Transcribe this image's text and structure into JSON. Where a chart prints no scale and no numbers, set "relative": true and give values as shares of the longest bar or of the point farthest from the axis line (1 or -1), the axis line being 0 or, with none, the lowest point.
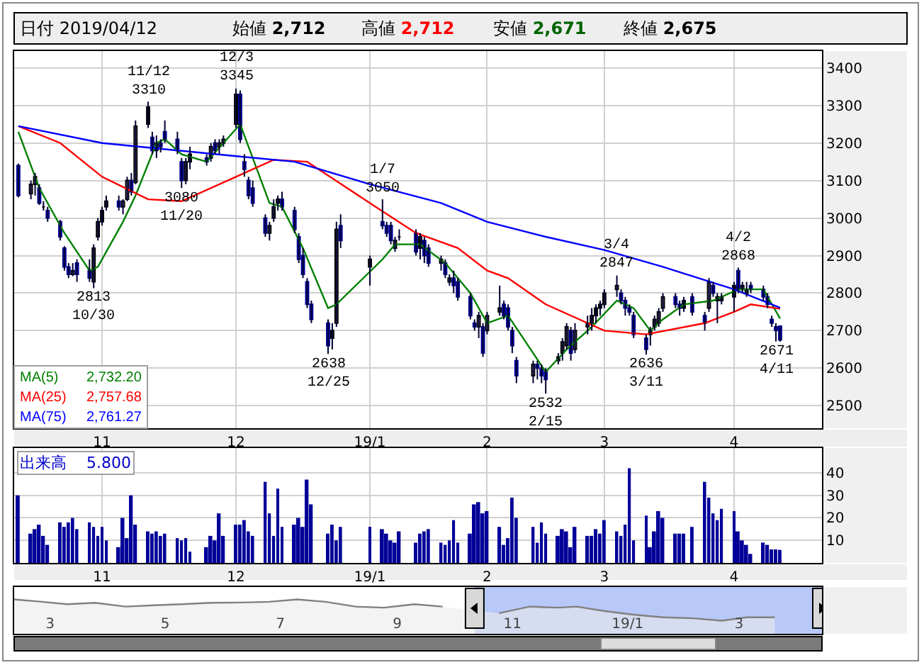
{
  "chart_data": [
    {
      "type": "candlestick",
      "grid": true,
      "marker": "none",
      "annotations": [
        "日付 2019/04/12",
        "始値 2,712",
        "高値 2,712",
        "安値 2,671",
        "終値 2,675",
        "2,732.20",
        "2,757.68",
        "2,761.27",
        {
          "text": "2813\n10/30",
          "x": "2018-10-30",
          "y": 2813
        },
        {
          "text": "11/12\n3310",
          "x": "2018-11-12",
          "y": 3310
        },
        {
          "text": "3080\n11/20",
          "x": "2018-11-20",
          "y": 3080
        },
        {
          "text": "12/3\n3345",
          "x": "2018-12-03",
          "y": 3345
        },
        {
          "text": "2638\n12/25",
          "x": "2018-12-25",
          "y": 2638
        },
        {
          "text": "1/7\n3050",
          "x": "2019-01-07",
          "y": 3050
        },
        {
          "text": "2532\n2/15",
          "x": "2019-02-15",
          "y": 2532
        },
        {
          "text": "3/4\n2847",
          "x": "2019-03-04",
          "y": 2847
        },
        {
          "text": "2636\n3/11",
          "x": "2019-03-11",
          "y": 2636
        },
        {
          "text": "4/2\n2868",
          "x": "2019-04-02",
          "y": 2868
        },
        {
          "text": "2671\n4/11",
          "x": "2019-04-11",
          "y": 2671
        }
      ],
      "xlim": [
        "2018-10-11",
        "2019-04-22"
      ],
      "xticks": [
        {
          "value": "2018-11-01",
          "label": "11"
        },
        {
          "value": "2018-12-03",
          "label": "12"
        },
        {
          "value": "2019-01-04",
          "label": "19/1"
        },
        {
          "value": "2019-02-01",
          "label": "2"
        },
        {
          "value": "2019-03-01",
          "label": "3"
        },
        {
          "value": "2019-04-01",
          "label": "4"
        }
      ],
      "ylim": [
        2440,
        3445
      ],
      "yticks": [
        2500,
        2600,
        2700,
        2800,
        2900,
        3000,
        3100,
        3200,
        3300,
        3400
      ],
      "x": [
        "2018-10-12",
        "2018-10-15",
        "2018-10-16",
        "2018-10-17",
        "2018-10-18",
        "2018-10-19",
        "2018-10-22",
        "2018-10-23",
        "2018-10-24",
        "2018-10-25",
        "2018-10-26",
        "2018-10-29",
        "2018-10-30",
        "2018-10-31",
        "2018-11-01",
        "2018-11-02",
        "2018-11-05",
        "2018-11-06",
        "2018-11-07",
        "2018-11-08",
        "2018-11-09",
        "2018-11-12",
        "2018-11-13",
        "2018-11-14",
        "2018-11-15",
        "2018-11-16",
        "2018-11-19",
        "2018-11-20",
        "2018-11-21",
        "2018-11-22",
        "2018-11-26",
        "2018-11-27",
        "2018-11-28",
        "2018-11-29",
        "2018-11-30",
        "2018-12-03",
        "2018-12-04",
        "2018-12-05",
        "2018-12-06",
        "2018-12-07",
        "2018-12-10",
        "2018-12-11",
        "2018-12-12",
        "2018-12-13",
        "2018-12-14",
        "2018-12-17",
        "2018-12-18",
        "2018-12-19",
        "2018-12-20",
        "2018-12-21",
        "2018-12-25",
        "2018-12-26",
        "2018-12-27",
        "2018-12-28",
        "2019-01-04",
        "2019-01-07",
        "2019-01-08",
        "2019-01-09",
        "2019-01-10",
        "2019-01-11",
        "2019-01-15",
        "2019-01-16",
        "2019-01-17",
        "2019-01-18",
        "2019-01-21",
        "2019-01-22",
        "2019-01-23",
        "2019-01-24",
        "2019-01-25",
        "2019-01-28",
        "2019-01-29",
        "2019-01-30",
        "2019-01-31",
        "2019-02-01",
        "2019-02-04",
        "2019-02-05",
        "2019-02-06",
        "2019-02-07",
        "2019-02-08",
        "2019-02-12",
        "2019-02-13",
        "2019-02-14",
        "2019-02-15",
        "2019-02-18",
        "2019-02-19",
        "2019-02-20",
        "2019-02-21",
        "2019-02-22",
        "2019-02-25",
        "2019-02-26",
        "2019-02-27",
        "2019-02-28",
        "2019-03-01",
        "2019-03-04",
        "2019-03-05",
        "2019-03-06",
        "2019-03-07",
        "2019-03-08",
        "2019-03-11",
        "2019-03-12",
        "2019-03-13",
        "2019-03-14",
        "2019-03-15",
        "2019-03-18",
        "2019-03-19",
        "2019-03-20",
        "2019-03-22",
        "2019-03-25",
        "2019-03-26",
        "2019-03-27",
        "2019-03-28",
        "2019-03-29",
        "2019-04-01",
        "2019-04-02",
        "2019-04-03",
        "2019-04-04",
        "2019-04-05",
        "2019-04-08",
        "2019-04-09",
        "2019-04-10",
        "2019-04-11",
        "2019-04-12"
      ],
      "ohlc": [
        [
          3140,
          3145,
          3055,
          3060
        ],
        [
          3065,
          3100,
          3050,
          3090
        ],
        [
          3090,
          3120,
          3060,
          3110
        ],
        [
          3080,
          3090,
          3035,
          3040
        ],
        [
          3030,
          3045,
          3020,
          3030
        ],
        [
          3020,
          3030,
          2990,
          3000
        ],
        [
          2990,
          2995,
          2940,
          2950
        ],
        [
          2920,
          2925,
          2860,
          2870
        ],
        [
          2870,
          2880,
          2840,
          2850
        ],
        [
          2850,
          2880,
          2845,
          2860
        ],
        [
          2880,
          2890,
          2830,
          2850
        ],
        [
          2860,
          2890,
          2830,
          2840
        ],
        [
          2830,
          2930,
          2813,
          2920
        ],
        [
          2950,
          3000,
          2940,
          2990
        ],
        [
          2990,
          3030,
          2980,
          3020
        ],
        [
          3030,
          3060,
          3020,
          3045
        ],
        [
          3045,
          3060,
          3020,
          3030
        ],
        [
          3030,
          3050,
          3010,
          3045
        ],
        [
          3050,
          3110,
          3045,
          3100
        ],
        [
          3100,
          3120,
          3060,
          3070
        ],
        [
          3095,
          3260,
          3090,
          3245
        ],
        [
          3250,
          3310,
          3240,
          3296
        ],
        [
          3215,
          3230,
          3170,
          3180
        ],
        [
          3180,
          3220,
          3160,
          3200
        ],
        [
          3200,
          3210,
          3175,
          3190
        ],
        [
          3230,
          3260,
          3200,
          3210
        ],
        [
          3210,
          3230,
          3170,
          3180
        ],
        [
          3150,
          3160,
          3080,
          3100
        ],
        [
          3100,
          3160,
          3090,
          3150
        ],
        [
          3150,
          3190,
          3130,
          3170
        ],
        [
          3160,
          3170,
          3140,
          3150
        ],
        [
          3160,
          3200,
          3150,
          3190
        ],
        [
          3200,
          3210,
          3170,
          3180
        ],
        [
          3190,
          3210,
          3170,
          3200
        ],
        [
          3200,
          3220,
          3190,
          3210
        ],
        [
          3250,
          3345,
          3240,
          3330
        ],
        [
          3330,
          3340,
          3200,
          3210
        ],
        [
          3150,
          3170,
          3110,
          3130
        ],
        [
          3100,
          3110,
          3050,
          3060
        ],
        [
          3080,
          3100,
          3030,
          3040
        ],
        [
          3000,
          3010,
          2950,
          2960
        ],
        [
          2960,
          2990,
          2940,
          2980
        ],
        [
          3000,
          3050,
          2990,
          3030
        ],
        [
          3040,
          3060,
          3020,
          3050
        ],
        [
          3050,
          3070,
          3020,
          3030
        ],
        [
          3020,
          3030,
          2960,
          2970
        ],
        [
          2950,
          2960,
          2880,
          2890
        ],
        [
          2900,
          2920,
          2840,
          2850
        ],
        [
          2830,
          2840,
          2760,
          2770
        ],
        [
          2770,
          2780,
          2720,
          2730
        ],
        [
          2720,
          2730,
          2638,
          2660
        ],
        [
          2680,
          2720,
          2650,
          2700
        ],
        [
          2720,
          2990,
          2710,
          2970
        ],
        [
          2980,
          3010,
          2920,
          2940
        ],
        [
          2870,
          2900,
          2820,
          2890
        ],
        [
          2990,
          3050,
          2970,
          2980
        ],
        [
          2980,
          2990,
          2950,
          2960
        ],
        [
          2980,
          2990,
          2930,
          2940
        ],
        [
          2920,
          2950,
          2910,
          2940
        ],
        [
          2950,
          2970,
          2940,
          2950
        ],
        [
          2960,
          2970,
          2900,
          2910
        ],
        [
          2920,
          2960,
          2890,
          2950
        ],
        [
          2940,
          2950,
          2880,
          2900
        ],
        [
          2920,
          2930,
          2870,
          2880
        ],
        [
          2880,
          2900,
          2860,
          2890
        ],
        [
          2880,
          2890,
          2840,
          2850
        ],
        [
          2830,
          2850,
          2820,
          2840
        ],
        [
          2840,
          2860,
          2800,
          2820
        ],
        [
          2830,
          2840,
          2780,
          2790
        ],
        [
          2790,
          2800,
          2730,
          2740
        ],
        [
          2720,
          2730,
          2700,
          2710
        ],
        [
          2710,
          2750,
          2680,
          2740
        ],
        [
          2710,
          2720,
          2630,
          2640
        ],
        [
          2700,
          2750,
          2690,
          2740
        ],
        [
          2750,
          2820,
          2740,
          2760
        ],
        [
          2770,
          2780,
          2730,
          2740
        ],
        [
          2760,
          2770,
          2700,
          2710
        ],
        [
          2700,
          2710,
          2640,
          2660
        ],
        [
          2620,
          2630,
          2560,
          2580
        ],
        [
          2580,
          2620,
          2560,
          2610
        ],
        [
          2610,
          2620,
          2570,
          2600
        ],
        [
          2600,
          2610,
          2560,
          2580
        ],
        [
          2590,
          2600,
          2532,
          2570
        ],
        [
          2620,
          2640,
          2610,
          2630
        ],
        [
          2640,
          2680,
          2620,
          2670
        ],
        [
          2660,
          2720,
          2650,
          2710
        ],
        [
          2700,
          2710,
          2620,
          2640
        ],
        [
          2650,
          2720,
          2640,
          2700
        ],
        [
          2710,
          2740,
          2690,
          2720
        ],
        [
          2720,
          2760,
          2700,
          2740
        ],
        [
          2740,
          2770,
          2720,
          2760
        ],
        [
          2760,
          2780,
          2740,
          2770
        ],
        [
          2770,
          2810,
          2760,
          2800
        ],
        [
          2810,
          2847,
          2790,
          2820
        ],
        [
          2800,
          2810,
          2770,
          2780
        ],
        [
          2780,
          2790,
          2740,
          2760
        ],
        [
          2760,
          2770,
          2740,
          2750
        ],
        [
          2740,
          2750,
          2680,
          2690
        ],
        [
          2680,
          2690,
          2636,
          2650
        ],
        [
          2690,
          2710,
          2660,
          2700
        ],
        [
          2710,
          2740,
          2700,
          2730
        ],
        [
          2720,
          2760,
          2710,
          2750
        ],
        [
          2760,
          2800,
          2750,
          2790
        ],
        [
          2790,
          2800,
          2760,
          2770
        ],
        [
          2770,
          2780,
          2740,
          2760
        ],
        [
          2760,
          2790,
          2750,
          2780
        ],
        [
          2790,
          2800,
          2740,
          2750
        ],
        [
          2740,
          2750,
          2700,
          2720
        ],
        [
          2760,
          2840,
          2750,
          2830
        ],
        [
          2820,
          2830,
          2790,
          2800
        ],
        [
          2780,
          2800,
          2720,
          2790
        ],
        [
          2780,
          2800,
          2770,
          2790
        ],
        [
          2790,
          2830,
          2750,
          2820
        ],
        [
          2860,
          2868,
          2800,
          2810
        ],
        [
          2810,
          2830,
          2800,
          2820
        ],
        [
          2800,
          2830,
          2790,
          2810
        ],
        [
          2820,
          2830,
          2800,
          2810
        ],
        [
          2810,
          2820,
          2780,
          2790
        ],
        [
          2790,
          2800,
          2760,
          2770
        ],
        [
          2730,
          2740,
          2710,
          2720
        ],
        [
          2710,
          2720,
          2671,
          2700
        ],
        [
          2712,
          2712,
          2671,
          2675
        ]
      ],
      "series": [
        {
          "type": "line",
          "name": "MA(5)",
          "color": "#008000",
          "x": [
            "2018-10-12",
            "2018-10-17",
            "2018-10-23",
            "2018-10-29",
            "2018-10-31",
            "2018-11-06",
            "2018-11-09",
            "2018-11-14",
            "2018-11-16",
            "2018-11-20",
            "2018-11-26",
            "2018-11-30",
            "2018-12-04",
            "2018-12-07",
            "2018-12-11",
            "2018-12-14",
            "2018-12-19",
            "2018-12-25",
            "2018-12-27",
            "2019-01-07",
            "2019-01-10",
            "2019-01-16",
            "2019-01-22",
            "2019-01-28",
            "2019-02-01",
            "2019-02-06",
            "2019-02-12",
            "2019-02-15",
            "2019-02-20",
            "2019-02-26",
            "2019-03-04",
            "2019-03-08",
            "2019-03-12",
            "2019-03-15",
            "2019-03-20",
            "2019-03-27",
            "2019-04-02",
            "2019-04-08",
            "2019-04-12"
          ],
          "values": [
            3230,
            3080,
            2960,
            2860,
            2870,
            2990,
            3060,
            3200,
            3210,
            3170,
            3150,
            3200,
            3250,
            3160,
            3040,
            3030,
            2920,
            2760,
            2770,
            2890,
            2930,
            2930,
            2880,
            2800,
            2720,
            2740,
            2640,
            2590,
            2650,
            2710,
            2780,
            2760,
            2700,
            2730,
            2770,
            2780,
            2810,
            2810,
            2732
          ]
        },
        {
          "type": "line",
          "name": "MA(25)",
          "color": "#ff0000",
          "x": [
            "2018-10-12",
            "2018-10-22",
            "2018-11-01",
            "2018-11-12",
            "2018-11-20",
            "2018-12-03",
            "2018-12-12",
            "2018-12-20",
            "2019-01-04",
            "2019-01-15",
            "2019-01-25",
            "2019-02-01",
            "2019-02-06",
            "2019-02-15",
            "2019-03-01",
            "2019-03-11",
            "2019-03-25",
            "2019-04-01",
            "2019-04-05",
            "2019-04-12"
          ],
          "values": [
            3245,
            3200,
            3110,
            3050,
            3045,
            3110,
            3155,
            3150,
            3040,
            2960,
            2920,
            2860,
            2840,
            2770,
            2700,
            2690,
            2720,
            2750,
            2770,
            2758
          ]
        },
        {
          "type": "line",
          "name": "MA(75)",
          "color": "#0000ff",
          "x": [
            "2018-10-12",
            "2018-11-01",
            "2018-12-03",
            "2018-12-17",
            "2019-01-04",
            "2019-01-21",
            "2019-02-01",
            "2019-02-15",
            "2019-03-01",
            "2019-03-15",
            "2019-04-01",
            "2019-04-12"
          ],
          "values": [
            3245,
            3200,
            3165,
            3150,
            3090,
            3040,
            2990,
            2950,
            2915,
            2870,
            2810,
            2761
          ]
        }
      ]
    },
    {
      "type": "bar",
      "grid": true,
      "color": "#000099",
      "annotations": [
        "出来高 5.800"
      ],
      "xlim": [
        "2018-10-11",
        "2019-04-22"
      ],
      "xticks": [
        {
          "value": "2018-11-01",
          "label": "11"
        },
        {
          "value": "2018-12-03",
          "label": "12"
        },
        {
          "value": "2019-01-04",
          "label": "19/1"
        },
        {
          "value": "2019-02-01",
          "label": "2"
        },
        {
          "value": "2019-03-01",
          "label": "3"
        },
        {
          "value": "2019-04-01",
          "label": "4"
        }
      ],
      "ylim": [
        0,
        51
      ],
      "yticks": [
        10,
        20,
        30,
        40
      ],
      "x": [
        "2018-10-12",
        "2018-10-15",
        "2018-10-16",
        "2018-10-17",
        "2018-10-18",
        "2018-10-19",
        "2018-10-22",
        "2018-10-23",
        "2018-10-24",
        "2018-10-25",
        "2018-10-26",
        "2018-10-29",
        "2018-10-30",
        "2018-10-31",
        "2018-11-01",
        "2018-11-02",
        "2018-11-05",
        "2018-11-06",
        "2018-11-07",
        "2018-11-08",
        "2018-11-09",
        "2018-11-12",
        "2018-11-13",
        "2018-11-14",
        "2018-11-15",
        "2018-11-16",
        "2018-11-19",
        "2018-11-20",
        "2018-11-21",
        "2018-11-22",
        "2018-11-26",
        "2018-11-27",
        "2018-11-28",
        "2018-11-29",
        "2018-11-30",
        "2018-12-03",
        "2018-12-04",
        "2018-12-05",
        "2018-12-06",
        "2018-12-07",
        "2018-12-10",
        "2018-12-11",
        "2018-12-12",
        "2018-12-13",
        "2018-12-14",
        "2018-12-17",
        "2018-12-18",
        "2018-12-19",
        "2018-12-20",
        "2018-12-21",
        "2018-12-25",
        "2018-12-26",
        "2018-12-27",
        "2018-12-28",
        "2019-01-04",
        "2019-01-07",
        "2019-01-08",
        "2019-01-09",
        "2019-01-10",
        "2019-01-11",
        "2019-01-15",
        "2019-01-16",
        "2019-01-17",
        "2019-01-18",
        "2019-01-21",
        "2019-01-22",
        "2019-01-23",
        "2019-01-24",
        "2019-01-25",
        "2019-01-28",
        "2019-01-29",
        "2019-01-30",
        "2019-01-31",
        "2019-02-01",
        "2019-02-04",
        "2019-02-05",
        "2019-02-06",
        "2019-02-07",
        "2019-02-08",
        "2019-02-12",
        "2019-02-13",
        "2019-02-14",
        "2019-02-15",
        "2019-02-18",
        "2019-02-19",
        "2019-02-20",
        "2019-02-21",
        "2019-02-22",
        "2019-02-25",
        "2019-02-26",
        "2019-02-27",
        "2019-02-28",
        "2019-03-01",
        "2019-03-04",
        "2019-03-05",
        "2019-03-06",
        "2019-03-07",
        "2019-03-08",
        "2019-03-11",
        "2019-03-12",
        "2019-03-13",
        "2019-03-14",
        "2019-03-15",
        "2019-03-18",
        "2019-03-19",
        "2019-03-20",
        "2019-03-22",
        "2019-03-25",
        "2019-03-26",
        "2019-03-27",
        "2019-03-28",
        "2019-03-29",
        "2019-04-01",
        "2019-04-02",
        "2019-04-03",
        "2019-04-04",
        "2019-04-05",
        "2019-04-08",
        "2019-04-09",
        "2019-04-10",
        "2019-04-11",
        "2019-04-12"
      ],
      "values": [
        30,
        13,
        15,
        17,
        12,
        8,
        18,
        16,
        18,
        20,
        15,
        18,
        16,
        12,
        16,
        10,
        7,
        20,
        11,
        30,
        17,
        14,
        13,
        14,
        12,
        13,
        11,
        10,
        11,
        5,
        7,
        12,
        10,
        22,
        12,
        17,
        17,
        19,
        14,
        12,
        36,
        22,
        12,
        33,
        16,
        17,
        20,
        16,
        37,
        26,
        13,
        17,
        10,
        16,
        16,
        15,
        13,
        10,
        9,
        14,
        9,
        13,
        14,
        15,
        9,
        8,
        10,
        19,
        9,
        13,
        26,
        27,
        22,
        23,
        16,
        8,
        11,
        29,
        20,
        16,
        9,
        18,
        13,
        12,
        15,
        14,
        7,
        16,
        12,
        12,
        15,
        13,
        19,
        14,
        12,
        17,
        42,
        10,
        21,
        7,
        14,
        23,
        20,
        13,
        13,
        13,
        16,
        36,
        29,
        22,
        19,
        24,
        23,
        14,
        10,
        8,
        4,
        9,
        8,
        6,
        6,
        5.8
      ]
    },
    {
      "type": "area",
      "relative": true,
      "color": "#808080",
      "xlim": [
        "2018-02-10",
        "2019-04-14"
      ],
      "xticks": [
        {
          "value": "2018-03-01",
          "label": "3"
        },
        {
          "value": "2018-05-01",
          "label": "5"
        },
        {
          "value": "2018-07-01",
          "label": "7"
        },
        {
          "value": "2018-09-01",
          "label": "9"
        },
        {
          "value": "2018-11-01",
          "label": "11"
        },
        {
          "value": "2019-01-01",
          "label": "19/1"
        },
        {
          "value": "2019-03-01",
          "label": "3"
        }
      ],
      "bands": [
        {
          "axis": "x",
          "from": "2018-10-12",
          "to": "2019-04-14",
          "color": "#b8c8f8"
        }
      ],
      "x": [
        "2018-02-10",
        "2018-02-25",
        "2018-03-10",
        "2018-03-25",
        "2018-04-10",
        "2018-04-25",
        "2018-05-10",
        "2018-05-25",
        "2018-06-10",
        "2018-06-25",
        "2018-07-10",
        "2018-07-25",
        "2018-08-10",
        "2018-08-25",
        "2018-09-10",
        "2018-09-25",
        "2018-10-10",
        "2018-10-25",
        "2018-11-10",
        "2018-11-25",
        "2018-12-05",
        "2018-12-20",
        "2019-01-05",
        "2019-01-20",
        "2019-02-05",
        "2019-02-20",
        "2019-03-05",
        "2019-03-20"
      ],
      "values": [
        1,
        0.93,
        0.86,
        0.9,
        0.79,
        0.83,
        0.86,
        0.9,
        0.91,
        0.93,
        1,
        0.93,
        0.79,
        0.76,
        0.86,
        0.79,
        null,
        0.6,
        0.79,
        0.76,
        0.79,
        0.66,
        0.55,
        0.48,
        0.45,
        0.38,
        0.48,
        0.48
      ]
    }
  ]
}
